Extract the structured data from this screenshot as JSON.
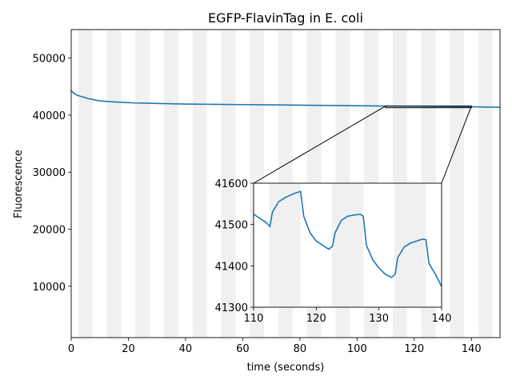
{
  "chart_data": {
    "type": "line",
    "title": "EGFP-FlavinTag in E. coli",
    "xlabel": "time (seconds)",
    "ylabel": "Fluorescence",
    "xlim": [
      0,
      150
    ],
    "ylim": [
      1000,
      55000
    ],
    "xticks": [
      0,
      20,
      40,
      60,
      80,
      100,
      120,
      140
    ],
    "yticks": [
      10000,
      20000,
      30000,
      40000,
      50000
    ],
    "line_color": "#1f77b4",
    "band_color": "#f0f0f0",
    "shaded_bands": [
      [
        2.5,
        7.5
      ],
      [
        12.5,
        17.5
      ],
      [
        22.5,
        27.5
      ],
      [
        32.5,
        37.5
      ],
      [
        42.5,
        47.5
      ],
      [
        52.5,
        57.5
      ],
      [
        62.5,
        67.5
      ],
      [
        72.5,
        77.5
      ],
      [
        82.5,
        87.5
      ],
      [
        92.5,
        97.5
      ],
      [
        102.5,
        107.5
      ],
      [
        112.5,
        117.5
      ],
      [
        122.5,
        127.5
      ],
      [
        132.5,
        137.5
      ],
      [
        142.5,
        147.5
      ]
    ],
    "series": [
      {
        "x": [
          0,
          1,
          2,
          4,
          6,
          8,
          10,
          14,
          18,
          22,
          26,
          30,
          40,
          50,
          60,
          70,
          80,
          90,
          100,
          110,
          120,
          130,
          140,
          145,
          150
        ],
        "y": [
          44300,
          43800,
          43500,
          43200,
          42900,
          42700,
          42500,
          42350,
          42250,
          42150,
          42100,
          42050,
          41950,
          41900,
          41850,
          41800,
          41750,
          41700,
          41650,
          41600,
          41560,
          41520,
          41480,
          41420,
          41380
        ]
      }
    ],
    "inset": {
      "xlim": [
        110,
        140
      ],
      "ylim": [
        41300,
        41600
      ],
      "xticks": [
        110,
        120,
        130,
        140
      ],
      "yticks": [
        41300,
        41400,
        41500,
        41600
      ],
      "shaded_bands": [
        [
          112.5,
          117.5
        ],
        [
          122.5,
          127.5
        ],
        [
          132.5,
          137.5
        ]
      ],
      "series": [
        {
          "x": [
            110,
            111,
            112,
            112.6,
            113,
            114,
            115,
            116,
            117,
            117.5,
            118,
            119,
            120,
            121,
            122,
            122.6,
            123,
            124,
            125,
            126,
            127,
            127.5,
            128,
            129,
            130,
            131,
            132,
            132.6,
            133,
            134,
            135,
            136,
            137,
            137.5,
            138,
            139,
            140
          ],
          "y": [
            41525,
            41515,
            41505,
            41495,
            41530,
            41555,
            41565,
            41572,
            41578,
            41580,
            41520,
            41480,
            41460,
            41450,
            41440,
            41448,
            41480,
            41510,
            41520,
            41523,
            41525,
            41520,
            41450,
            41415,
            41395,
            41380,
            41372,
            41380,
            41420,
            41445,
            41455,
            41460,
            41465,
            41463,
            41405,
            41380,
            41350
          ]
        }
      ]
    }
  }
}
